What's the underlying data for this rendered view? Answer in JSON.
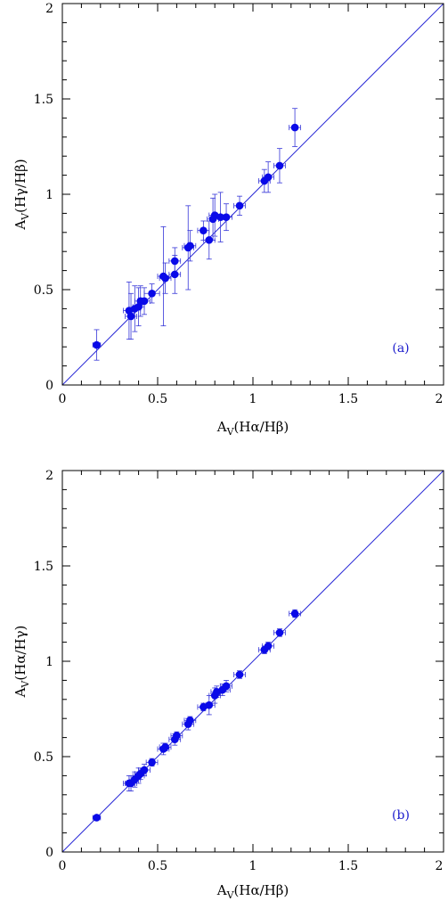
{
  "chart_data": [
    {
      "type": "scatter",
      "panel": "(a)",
      "xlabel": "A_V(Hα/Hβ)",
      "ylabel": "A_V(Hγ/Hβ)",
      "xlim": [
        0,
        2
      ],
      "ylim": [
        0,
        2
      ],
      "xticks": [
        "0",
        "0.5",
        "1",
        "1.5",
        "2"
      ],
      "yticks": [
        "0",
        "0.5",
        "1",
        "1.5",
        "2"
      ],
      "reference_line": "y = x",
      "color": "#0a0ae8",
      "points": [
        {
          "x": 0.18,
          "y": 0.21,
          "xerr": 0.02,
          "yerr": 0.08
        },
        {
          "x": 0.35,
          "y": 0.39,
          "xerr": 0.03,
          "yerr": 0.15
        },
        {
          "x": 0.36,
          "y": 0.36,
          "xerr": 0.03,
          "yerr": 0.12
        },
        {
          "x": 0.38,
          "y": 0.4,
          "xerr": 0.03,
          "yerr": 0.12
        },
        {
          "x": 0.4,
          "y": 0.41,
          "xerr": 0.03,
          "yerr": 0.1
        },
        {
          "x": 0.41,
          "y": 0.44,
          "xerr": 0.03,
          "yerr": 0.08
        },
        {
          "x": 0.43,
          "y": 0.44,
          "xerr": 0.03,
          "yerr": 0.07
        },
        {
          "x": 0.47,
          "y": 0.48,
          "xerr": 0.04,
          "yerr": 0.05
        },
        {
          "x": 0.53,
          "y": 0.57,
          "xerr": 0.03,
          "yerr": 0.26
        },
        {
          "x": 0.54,
          "y": 0.56,
          "xerr": 0.03,
          "yerr": 0.08
        },
        {
          "x": 0.59,
          "y": 0.58,
          "xerr": 0.03,
          "yerr": 0.1
        },
        {
          "x": 0.59,
          "y": 0.65,
          "xerr": 0.03,
          "yerr": 0.07
        },
        {
          "x": 0.66,
          "y": 0.72,
          "xerr": 0.03,
          "yerr": 0.22
        },
        {
          "x": 0.67,
          "y": 0.73,
          "xerr": 0.03,
          "yerr": 0.08
        },
        {
          "x": 0.74,
          "y": 0.81,
          "xerr": 0.03,
          "yerr": 0.05
        },
        {
          "x": 0.77,
          "y": 0.76,
          "xerr": 0.03,
          "yerr": 0.1
        },
        {
          "x": 0.79,
          "y": 0.87,
          "xerr": 0.03,
          "yerr": 0.11
        },
        {
          "x": 0.8,
          "y": 0.89,
          "xerr": 0.03,
          "yerr": 0.11
        },
        {
          "x": 0.83,
          "y": 0.88,
          "xerr": 0.04,
          "yerr": 0.13
        },
        {
          "x": 0.86,
          "y": 0.88,
          "xerr": 0.03,
          "yerr": 0.07
        },
        {
          "x": 0.93,
          "y": 0.94,
          "xerr": 0.03,
          "yerr": 0.05
        },
        {
          "x": 1.06,
          "y": 1.07,
          "xerr": 0.03,
          "yerr": 0.06
        },
        {
          "x": 1.08,
          "y": 1.09,
          "xerr": 0.03,
          "yerr": 0.08
        },
        {
          "x": 1.14,
          "y": 1.15,
          "xerr": 0.03,
          "yerr": 0.09
        },
        {
          "x": 1.22,
          "y": 1.35,
          "xerr": 0.03,
          "yerr": 0.1
        }
      ]
    },
    {
      "type": "scatter",
      "panel": "(b)",
      "xlabel": "A_V(Hα/Hβ)",
      "ylabel": "A_V(Hα/Hγ)",
      "xlim": [
        0,
        2
      ],
      "ylim": [
        0,
        2
      ],
      "xticks": [
        "0",
        "0.5",
        "1",
        "1.5",
        "2"
      ],
      "yticks": [
        "0",
        "0.5",
        "1",
        "1.5",
        "2"
      ],
      "reference_line": "y = x",
      "color": "#0a0ae8",
      "points": [
        {
          "x": 0.18,
          "y": 0.18,
          "xerr": 0.02,
          "yerr": 0.01
        },
        {
          "x": 0.35,
          "y": 0.36,
          "xerr": 0.03,
          "yerr": 0.04
        },
        {
          "x": 0.36,
          "y": 0.36,
          "xerr": 0.03,
          "yerr": 0.04
        },
        {
          "x": 0.38,
          "y": 0.38,
          "xerr": 0.03,
          "yerr": 0.04
        },
        {
          "x": 0.4,
          "y": 0.4,
          "xerr": 0.03,
          "yerr": 0.04
        },
        {
          "x": 0.41,
          "y": 0.41,
          "xerr": 0.03,
          "yerr": 0.03
        },
        {
          "x": 0.43,
          "y": 0.43,
          "xerr": 0.03,
          "yerr": 0.03
        },
        {
          "x": 0.47,
          "y": 0.47,
          "xerr": 0.03,
          "yerr": 0.02
        },
        {
          "x": 0.53,
          "y": 0.54,
          "xerr": 0.03,
          "yerr": 0.03
        },
        {
          "x": 0.54,
          "y": 0.55,
          "xerr": 0.03,
          "yerr": 0.02
        },
        {
          "x": 0.59,
          "y": 0.59,
          "xerr": 0.03,
          "yerr": 0.03
        },
        {
          "x": 0.6,
          "y": 0.61,
          "xerr": 0.03,
          "yerr": 0.02
        },
        {
          "x": 0.66,
          "y": 0.67,
          "xerr": 0.03,
          "yerr": 0.03
        },
        {
          "x": 0.67,
          "y": 0.69,
          "xerr": 0.03,
          "yerr": 0.02
        },
        {
          "x": 0.74,
          "y": 0.76,
          "xerr": 0.03,
          "yerr": 0.02
        },
        {
          "x": 0.77,
          "y": 0.77,
          "xerr": 0.03,
          "yerr": 0.05
        },
        {
          "x": 0.8,
          "y": 0.82,
          "xerr": 0.03,
          "yerr": 0.04
        },
        {
          "x": 0.81,
          "y": 0.84,
          "xerr": 0.03,
          "yerr": 0.03
        },
        {
          "x": 0.84,
          "y": 0.85,
          "xerr": 0.04,
          "yerr": 0.03
        },
        {
          "x": 0.86,
          "y": 0.87,
          "xerr": 0.03,
          "yerr": 0.03
        },
        {
          "x": 0.93,
          "y": 0.93,
          "xerr": 0.03,
          "yerr": 0.02
        },
        {
          "x": 1.06,
          "y": 1.06,
          "xerr": 0.03,
          "yerr": 0.02
        },
        {
          "x": 1.08,
          "y": 1.08,
          "xerr": 0.03,
          "yerr": 0.02
        },
        {
          "x": 1.14,
          "y": 1.15,
          "xerr": 0.03,
          "yerr": 0.02
        },
        {
          "x": 1.22,
          "y": 1.25,
          "xerr": 0.03,
          "yerr": 0.02
        }
      ]
    }
  ]
}
